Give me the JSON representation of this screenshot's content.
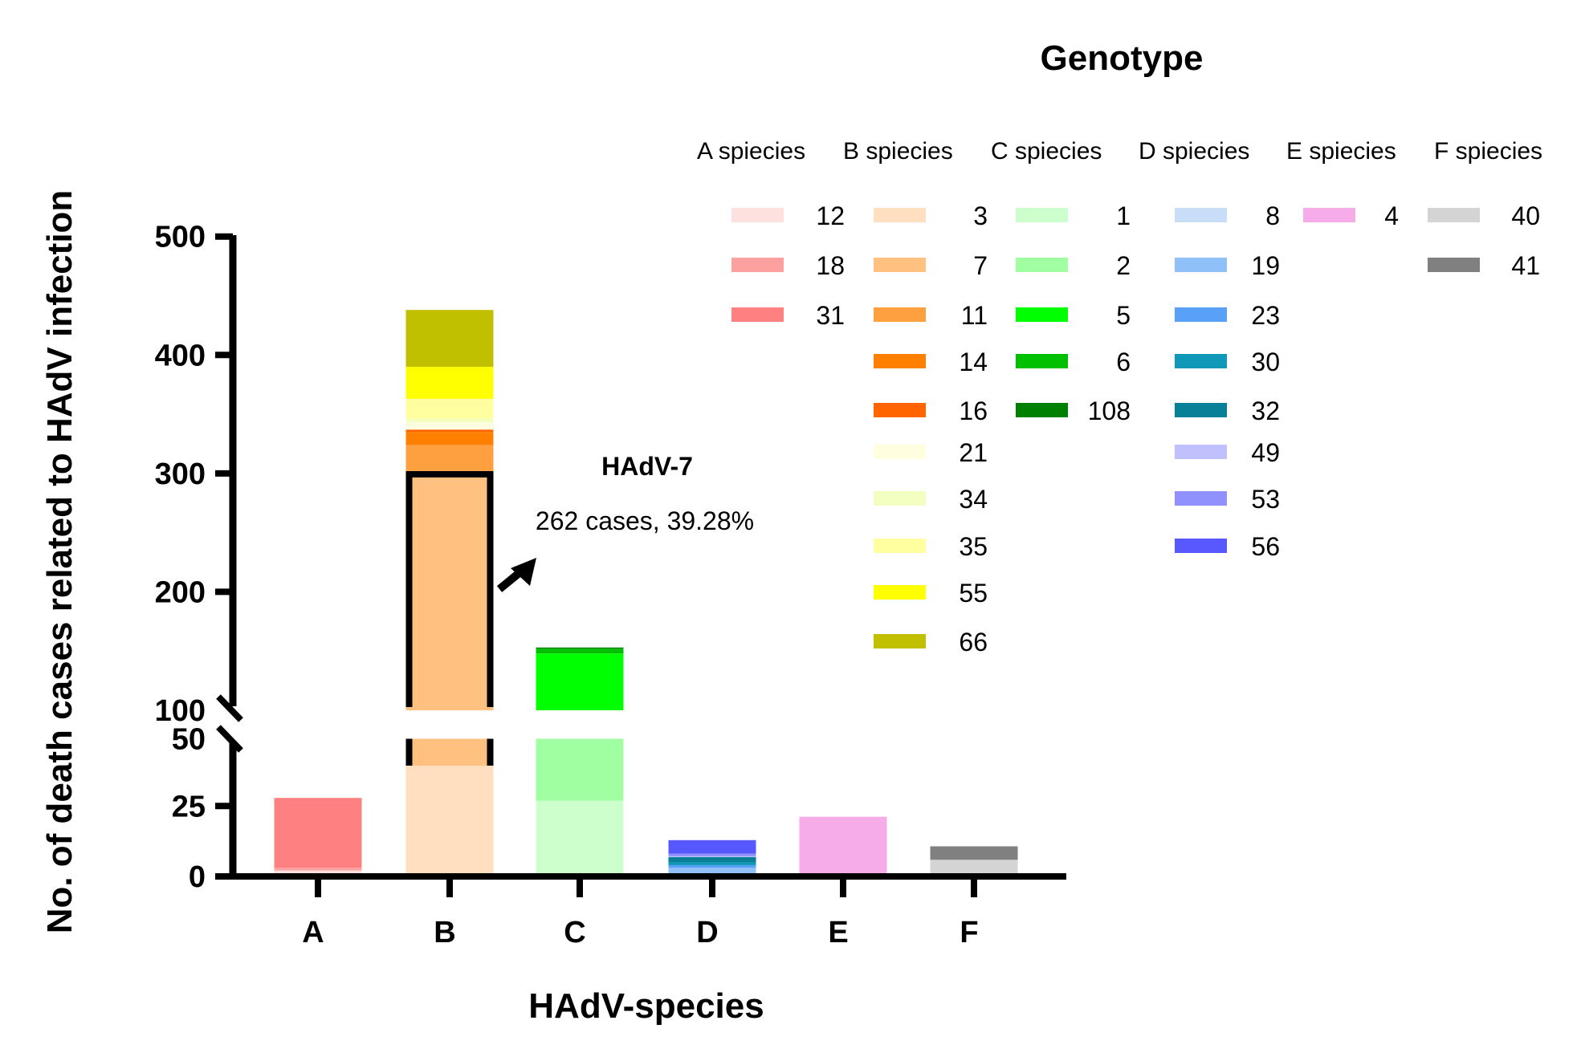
{
  "chart_data": {
    "type": "bar",
    "stacked": true,
    "title": "",
    "xlabel": "HAdV-species",
    "ylabel": "No. of death cases related to HAdV infection",
    "categories": [
      "A",
      "B",
      "C",
      "D",
      "E",
      "F"
    ],
    "y_axis": {
      "broken": true,
      "lower_range": [
        0,
        50
      ],
      "upper_range": [
        100,
        500
      ],
      "lower_ticks": [
        0,
        25,
        50
      ],
      "upper_ticks": [
        100,
        200,
        300,
        400,
        500
      ],
      "tick_labels": [
        "0",
        "25",
        "50",
        "100",
        "200",
        "300",
        "400",
        "500"
      ]
    },
    "legend": {
      "title": "Genotype",
      "placement": "top-right",
      "groups": [
        {
          "header": "A spiecies",
          "category": "A",
          "entries": [
            {
              "label": "12",
              "color": "#FDE0E0"
            },
            {
              "label": "18",
              "color": "#FCA0A0"
            },
            {
              "label": "31",
              "color": "#FF8080"
            }
          ]
        },
        {
          "header": "B spiecies",
          "category": "B",
          "entries": [
            {
              "label": "3",
              "color": "#FFDFBF"
            },
            {
              "label": "7",
              "color": "#FFC080"
            },
            {
              "label": "11",
              "color": "#FFA040"
            },
            {
              "label": "14",
              "color": "#FF8000"
            },
            {
              "label": "16",
              "color": "#FF6400"
            },
            {
              "label": "21",
              "color": "#FFFFE0"
            },
            {
              "label": "34",
              "color": "#F2FFC0"
            },
            {
              "label": "35",
              "color": "#FFFFA0"
            },
            {
              "label": "55",
              "color": "#FFFF00"
            },
            {
              "label": "66",
              "color": "#C0C000"
            }
          ]
        },
        {
          "header": "C spiecies",
          "category": "C",
          "entries": [
            {
              "label": "1",
              "color": "#CCFFCC"
            },
            {
              "label": "2",
              "color": "#A0FFA0"
            },
            {
              "label": "5",
              "color": "#00FF00"
            },
            {
              "label": "6",
              "color": "#00C000"
            },
            {
              "label": "108",
              "color": "#008000"
            }
          ]
        },
        {
          "header": "D spiecies",
          "category": "D",
          "entries": [
            {
              "label": "8",
              "color": "#C8DEF8"
            },
            {
              "label": "19",
              "color": "#90C0F8"
            },
            {
              "label": "23",
              "color": "#58A0F8"
            },
            {
              "label": "30",
              "color": "#1098B8"
            },
            {
              "label": "32",
              "color": "#088098"
            },
            {
              "label": "49",
              "color": "#C0C0FF"
            },
            {
              "label": "53",
              "color": "#9090FF"
            },
            {
              "label": "56",
              "color": "#5858FF"
            }
          ]
        },
        {
          "header": "E spiecies",
          "category": "E",
          "entries": [
            {
              "label": "4",
              "color": "#F5ACE8"
            }
          ]
        },
        {
          "header": "F spiecies",
          "category": "F",
          "entries": [
            {
              "label": "40",
              "color": "#D4D4D4"
            },
            {
              "label": "41",
              "color": "#808080"
            }
          ]
        }
      ]
    },
    "series": [
      {
        "category": "A",
        "segments": [
          {
            "genotype": "12",
            "value": 1
          },
          {
            "genotype": "18",
            "value": 1
          },
          {
            "genotype": "31",
            "value": 26
          }
        ]
      },
      {
        "category": "B",
        "segments": [
          {
            "genotype": "3",
            "value": 40
          },
          {
            "genotype": "7",
            "value": 262,
            "highlighted": true
          },
          {
            "genotype": "11",
            "value": 22
          },
          {
            "genotype": "14",
            "value": 11
          },
          {
            "genotype": "16",
            "value": 2
          },
          {
            "genotype": "21",
            "value": 6
          },
          {
            "genotype": "34",
            "value": 3
          },
          {
            "genotype": "35",
            "value": 17
          },
          {
            "genotype": "55",
            "value": 27
          },
          {
            "genotype": "66",
            "value": 48
          }
        ]
      },
      {
        "category": "C",
        "segments": [
          {
            "genotype": "1",
            "value": 27
          },
          {
            "genotype": "2",
            "value": 24
          },
          {
            "genotype": "5",
            "value": 97
          },
          {
            "genotype": "6",
            "value": 4
          },
          {
            "genotype": "108",
            "value": 1
          }
        ]
      },
      {
        "category": "D",
        "segments": [
          {
            "genotype": "8",
            "value": 0
          },
          {
            "genotype": "19",
            "value": 2
          },
          {
            "genotype": "23",
            "value": 1
          },
          {
            "genotype": "30",
            "value": 1
          },
          {
            "genotype": "32",
            "value": 2
          },
          {
            "genotype": "49",
            "value": 0.3
          },
          {
            "genotype": "53",
            "value": 1
          },
          {
            "genotype": "56",
            "value": 5
          }
        ]
      },
      {
        "category": "E",
        "segments": [
          {
            "genotype": "4",
            "value": 21
          }
        ]
      },
      {
        "category": "F",
        "segments": [
          {
            "genotype": "40",
            "value": 5
          },
          {
            "genotype": "41",
            "value": 5
          }
        ]
      }
    ],
    "annotation": {
      "title": "HAdV-7",
      "text": "262 cases, 39.28%",
      "target": "B / 7"
    }
  }
}
